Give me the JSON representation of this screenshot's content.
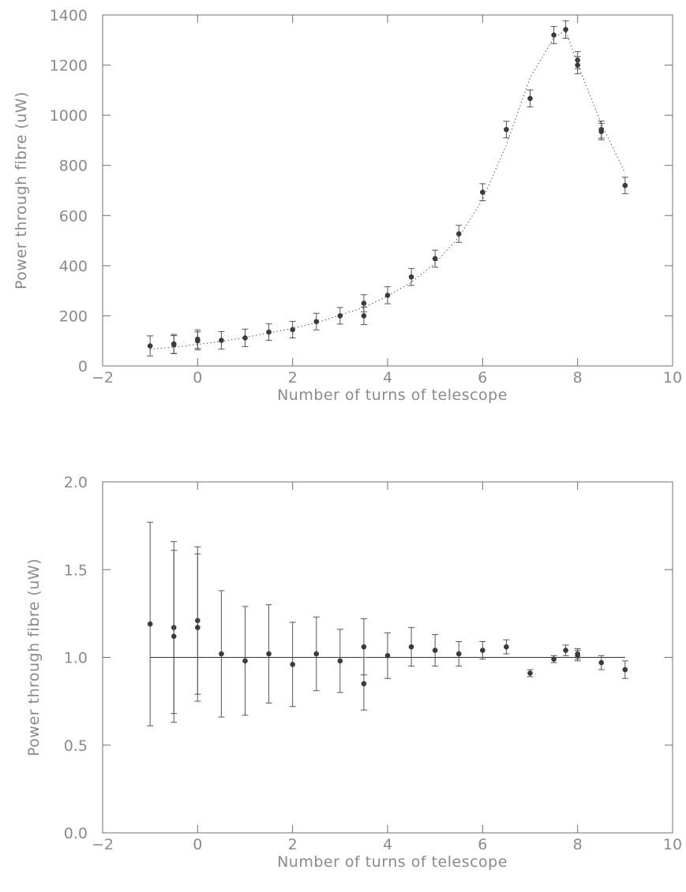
{
  "chart_data": [
    {
      "type": "scatter",
      "xlabel": "Number of turns of telescope",
      "ylabel": "Power through fibre (uW)",
      "xlim": [
        -2,
        10
      ],
      "ylim": [
        0,
        1400
      ],
      "xticks": [
        -2,
        0,
        2,
        4,
        6,
        8,
        10
      ],
      "xtick_labels": [
        "−2",
        "0",
        "2",
        "4",
        "6",
        "8",
        "10"
      ],
      "yticks": [
        0,
        200,
        400,
        600,
        800,
        1000,
        1200,
        1400
      ],
      "ytick_labels": [
        "0",
        "200",
        "400",
        "600",
        "800",
        "1000",
        "1200",
        "1400"
      ],
      "grid": false,
      "series": [
        {
          "points": [
            {
              "x": -1,
              "y": 80,
              "err": 40
            },
            {
              "x": -0.5,
              "y": 88,
              "err": 38
            },
            {
              "x": -0.5,
              "y": 85,
              "err": 36
            },
            {
              "x": 0,
              "y": 107,
              "err": 37
            },
            {
              "x": 0,
              "y": 100,
              "err": 36
            },
            {
              "x": 0.5,
              "y": 102,
              "err": 35
            },
            {
              "x": 1,
              "y": 112,
              "err": 35
            },
            {
              "x": 1.5,
              "y": 135,
              "err": 33
            },
            {
              "x": 2,
              "y": 145,
              "err": 33
            },
            {
              "x": 2.5,
              "y": 177,
              "err": 33
            },
            {
              "x": 3,
              "y": 200,
              "err": 33
            },
            {
              "x": 3.5,
              "y": 250,
              "err": 34
            },
            {
              "x": 3.5,
              "y": 200,
              "err": 35
            },
            {
              "x": 4,
              "y": 282,
              "err": 34
            },
            {
              "x": 4.5,
              "y": 355,
              "err": 34
            },
            {
              "x": 5,
              "y": 428,
              "err": 34
            },
            {
              "x": 5.5,
              "y": 527,
              "err": 34
            },
            {
              "x": 6,
              "y": 693,
              "err": 34
            },
            {
              "x": 6.5,
              "y": 943,
              "err": 33
            },
            {
              "x": 7,
              "y": 1067,
              "err": 34
            },
            {
              "x": 7.5,
              "y": 1320,
              "err": 34
            },
            {
              "x": 7.75,
              "y": 1342,
              "err": 35
            },
            {
              "x": 8,
              "y": 1220,
              "err": 34
            },
            {
              "x": 8,
              "y": 1200,
              "err": 34
            },
            {
              "x": 8.5,
              "y": 943,
              "err": 34
            },
            {
              "x": 8.5,
              "y": 935,
              "err": 33
            },
            {
              "x": 9,
              "y": 720,
              "err": 33
            }
          ]
        },
        {
          "style": "dotted-fit",
          "x": [
            -1,
            -0.5,
            0,
            0.5,
            1,
            1.5,
            2,
            2.5,
            3,
            3.5,
            4,
            4.5,
            5,
            5.5,
            6,
            6.5,
            7,
            7.5,
            7.75,
            8,
            8.5,
            9
          ],
          "y": [
            67,
            75,
            86,
            98,
            114,
            132,
            150,
            172,
            203,
            233,
            279,
            334,
            410,
            514,
            664,
            882,
            1150,
            1310,
            1338,
            1205,
            965,
            770
          ]
        }
      ]
    },
    {
      "type": "scatter",
      "xlabel": "Number of turns of telescope",
      "ylabel": "Power through fibre (uW)",
      "xlim": [
        -2,
        10
      ],
      "ylim": [
        0,
        2
      ],
      "xticks": [
        -2,
        0,
        2,
        4,
        6,
        8,
        10
      ],
      "xtick_labels": [
        "−2",
        "0",
        "2",
        "4",
        "6",
        "8",
        "10"
      ],
      "yticks": [
        0,
        0.5,
        1,
        1.5,
        2
      ],
      "ytick_labels": [
        "0.0",
        "0.5",
        "1.0",
        "1.5",
        "2.0"
      ],
      "grid": false,
      "reference_line": {
        "y": 1,
        "x_from": -1,
        "x_to": 9
      },
      "series": [
        {
          "points": [
            {
              "x": -1,
              "y": 1.19,
              "err": 0.58
            },
            {
              "x": -0.5,
              "y": 1.17,
              "err": 0.49
            },
            {
              "x": -0.5,
              "y": 1.12,
              "err": 0.49
            },
            {
              "x": 0,
              "y": 1.21,
              "err": 0.42
            },
            {
              "x": 0,
              "y": 1.17,
              "err": 0.42
            },
            {
              "x": 0.5,
              "y": 1.02,
              "err": 0.36
            },
            {
              "x": 1,
              "y": 0.98,
              "err": 0.31
            },
            {
              "x": 1.5,
              "y": 1.02,
              "err": 0.28
            },
            {
              "x": 2,
              "y": 0.96,
              "err": 0.24
            },
            {
              "x": 2.5,
              "y": 1.02,
              "err": 0.21
            },
            {
              "x": 3,
              "y": 0.98,
              "err": 0.18
            },
            {
              "x": 3.5,
              "y": 1.06,
              "err": 0.16
            },
            {
              "x": 3.5,
              "y": 0.85,
              "err": 0.15
            },
            {
              "x": 4,
              "y": 1.01,
              "err": 0.13
            },
            {
              "x": 4.5,
              "y": 1.06,
              "err": 0.11
            },
            {
              "x": 5,
              "y": 1.04,
              "err": 0.09
            },
            {
              "x": 5.5,
              "y": 1.02,
              "err": 0.07
            },
            {
              "x": 6,
              "y": 1.04,
              "err": 0.05
            },
            {
              "x": 6.5,
              "y": 1.06,
              "err": 0.04
            },
            {
              "x": 7,
              "y": 0.91,
              "err": 0.02
            },
            {
              "x": 7.5,
              "y": 0.99,
              "err": 0.02
            },
            {
              "x": 7.75,
              "y": 1.04,
              "err": 0.03
            },
            {
              "x": 8,
              "y": 1.02,
              "err": 0.03
            },
            {
              "x": 8,
              "y": 1.01,
              "err": 0.03
            },
            {
              "x": 8.5,
              "y": 0.97,
              "err": 0.04
            },
            {
              "x": 9,
              "y": 0.93,
              "err": 0.05
            }
          ]
        }
      ]
    }
  ]
}
